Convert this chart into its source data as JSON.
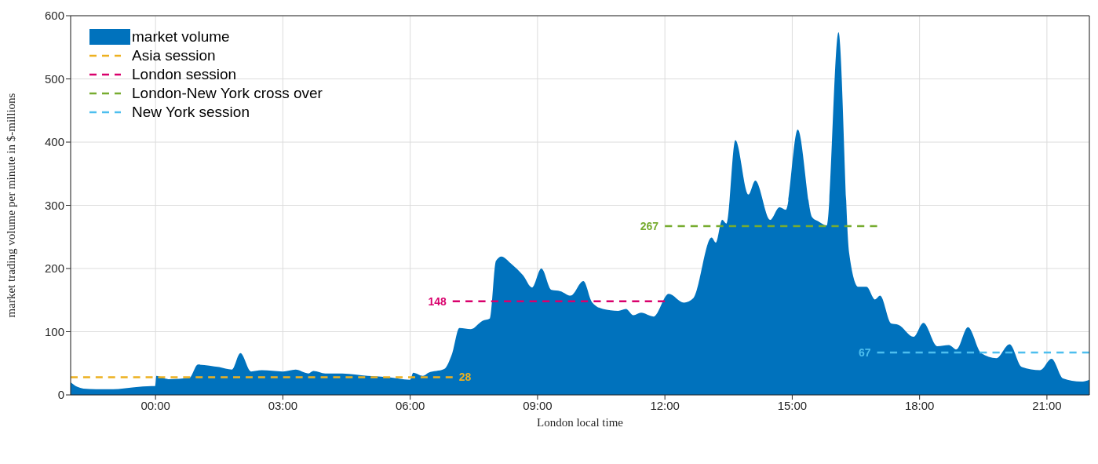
{
  "chart_data": {
    "type": "area",
    "xlabel": "London local time",
    "ylabel": "market trading volume per minute in $-millions",
    "xlim": [
      -2,
      22
    ],
    "ylim": [
      0,
      600
    ],
    "xticks": [
      {
        "value": 0,
        "label": "00:00"
      },
      {
        "value": 3,
        "label": "03:00"
      },
      {
        "value": 6,
        "label": "06:00"
      },
      {
        "value": 9,
        "label": "09:00"
      },
      {
        "value": 12,
        "label": "12:00"
      },
      {
        "value": 15,
        "label": "15:00"
      },
      {
        "value": 18,
        "label": "18:00"
      },
      {
        "value": 21,
        "label": "21:00"
      }
    ],
    "yticks": [
      0,
      100,
      200,
      300,
      400,
      500,
      600
    ],
    "grid": true,
    "legend": "top left",
    "series": [
      {
        "name": "market volume",
        "color": "#0072bd",
        "x": [
          -2,
          -1.85,
          -1.7,
          -1.4,
          -1,
          -0.5,
          -0.1,
          -0.01,
          0.02,
          0.3,
          0.8,
          1.0,
          1.5,
          1.8,
          2.0,
          2.25,
          2.5,
          3.0,
          3.3,
          3.6,
          3.72,
          4.0,
          4.4,
          5.0,
          5.5,
          6.0,
          6.07,
          6.3,
          6.43,
          6.8,
          6.98,
          7.16,
          7.43,
          7.7,
          7.88,
          8.02,
          8.15,
          8.37,
          8.66,
          8.87,
          9.09,
          9.33,
          9.54,
          9.78,
          10.08,
          10.28,
          10.54,
          10.9,
          11.08,
          11.26,
          11.44,
          11.73,
          12.09,
          12.45,
          12.67,
          13.1,
          13.2,
          13.35,
          13.45,
          13.66,
          13.97,
          14.13,
          14.48,
          14.7,
          14.85,
          15.13,
          15.47,
          15.63,
          15.81,
          16.09,
          16.34,
          16.56,
          16.75,
          16.95,
          17.07,
          17.33,
          17.5,
          17.86,
          18.09,
          18.42,
          18.69,
          18.87,
          19.14,
          19.45,
          19.81,
          20.12,
          20.41,
          20.84,
          21.11,
          21.38,
          21.8,
          22
        ],
        "values": [
          20,
          13,
          10,
          9,
          9,
          12,
          14,
          14,
          30,
          25,
          27,
          48,
          44,
          40,
          66,
          37,
          39,
          37,
          40,
          34,
          38,
          34,
          34,
          30,
          28,
          24,
          35,
          30,
          35,
          41,
          64,
          106,
          104,
          117,
          121,
          212,
          219,
          208,
          189,
          170,
          200,
          166,
          164,
          157,
          180,
          147,
          136,
          133,
          136,
          126,
          130,
          124,
          160,
          146,
          153,
          249,
          241,
          277,
          271,
          403,
          317,
          339,
          277,
          297,
          293,
          420,
          281,
          274,
          268,
          574,
          225,
          171,
          171,
          151,
          157,
          113,
          111,
          92,
          114,
          77,
          79,
          72,
          107,
          66,
          58,
          80,
          44,
          39,
          57,
          26,
          21,
          24
        ]
      },
      {
        "name": "Asia session",
        "type": "line",
        "color": "#edb120",
        "line_style": "dashed",
        "x": [
          -2,
          7
        ],
        "values": [
          28,
          28
        ],
        "value_labels": [
          null,
          "28"
        ]
      },
      {
        "name": "London session",
        "type": "line",
        "color": "#d9006c",
        "line_style": "dashed",
        "x": [
          7,
          12
        ],
        "values": [
          148,
          148
        ],
        "value_labels": [
          "148",
          null
        ]
      },
      {
        "name": "London-New York cross over",
        "type": "line",
        "color": "#77ac30",
        "line_style": "dashed",
        "x": [
          12,
          17
        ],
        "values": [
          267,
          267
        ],
        "value_labels": [
          "267",
          null
        ]
      },
      {
        "name": "New York session",
        "type": "line",
        "color": "#4dbeee",
        "line_style": "dashed",
        "x": [
          17,
          22
        ],
        "values": [
          67,
          67
        ],
        "value_labels": [
          "67",
          null
        ]
      }
    ]
  }
}
